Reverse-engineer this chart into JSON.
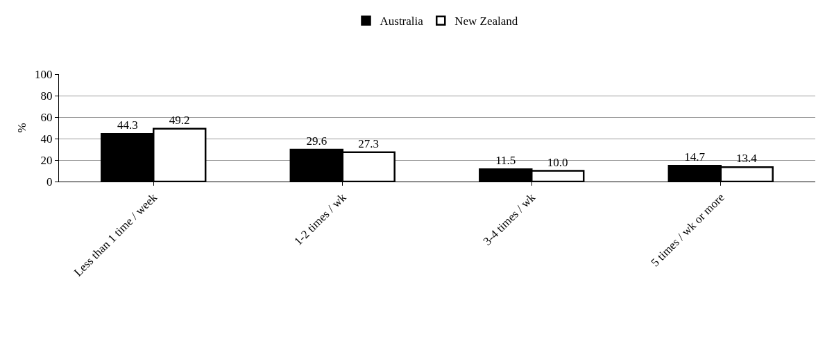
{
  "chart_data": {
    "type": "bar",
    "ylabel": "%",
    "categories": [
      "Less than 1 time / week",
      "1-2 times / wk",
      "3-4 times / wk",
      "5 times / wk or more"
    ],
    "series": [
      {
        "name": "Australia",
        "color": "#000000",
        "values": [
          44.3,
          29.6,
          11.5,
          14.7
        ],
        "value_labels": [
          "44.3",
          "29.6",
          "11.5",
          "14.7"
        ]
      },
      {
        "name": "New Zealand",
        "color": "#ffffff",
        "values": [
          49.2,
          27.3,
          10.0,
          13.4
        ],
        "value_labels": [
          "49.2",
          "27.3",
          "10.0",
          "13.4"
        ]
      }
    ],
    "ylim": [
      0,
      100
    ],
    "yticks": [
      0,
      20,
      40,
      60,
      80,
      100
    ],
    "grid": "y",
    "legend": "top"
  }
}
